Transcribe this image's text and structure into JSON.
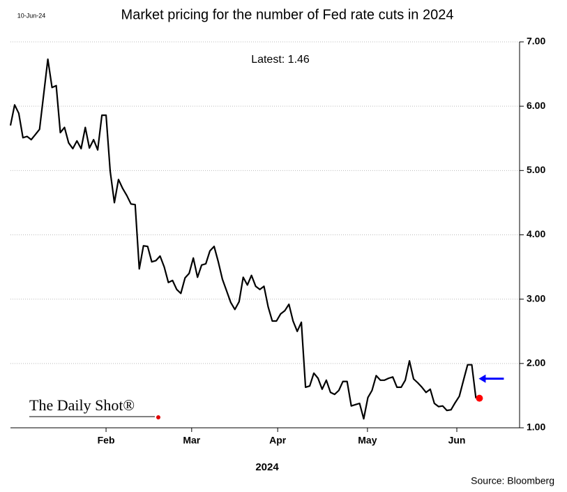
{
  "chart_data": {
    "type": "line",
    "date": "10-Jun-24",
    "title": "Market pricing for the number of Fed rate cuts in 2024",
    "annotation": "Latest:  1.46",
    "xlabel": "2024",
    "source": "Source: Bloomberg",
    "logo": "The Daily Shot®",
    "color": "#000000",
    "last_point_color": "#ff0000",
    "arrow_color": "#0000ff",
    "grid": true,
    "values": [
      5.7,
      6.02,
      5.89,
      5.51,
      5.53,
      5.48,
      5.56,
      5.64,
      6.19,
      6.73,
      6.29,
      6.32,
      5.59,
      5.67,
      5.43,
      5.34,
      5.46,
      5.34,
      5.67,
      5.35,
      5.48,
      5.32,
      5.86,
      5.86,
      4.99,
      4.5,
      4.86,
      4.72,
      4.61,
      4.48,
      4.47,
      3.47,
      3.83,
      3.82,
      3.58,
      3.6,
      3.67,
      3.5,
      3.26,
      3.29,
      3.15,
      3.09,
      3.33,
      3.4,
      3.64,
      3.34,
      3.53,
      3.55,
      3.75,
      3.82,
      3.58,
      3.31,
      3.13,
      2.95,
      2.84,
      2.96,
      3.34,
      3.22,
      3.37,
      3.2,
      3.15,
      3.2,
      2.88,
      2.66,
      2.66,
      2.77,
      2.82,
      2.92,
      2.66,
      2.5,
      2.64,
      1.63,
      1.65,
      1.85,
      1.77,
      1.6,
      1.74,
      1.55,
      1.52,
      1.58,
      1.72,
      1.72,
      1.34,
      1.36,
      1.38,
      1.14,
      1.47,
      1.58,
      1.81,
      1.74,
      1.74,
      1.77,
      1.79,
      1.63,
      1.63,
      1.74,
      2.04,
      1.76,
      1.7,
      1.63,
      1.55,
      1.6,
      1.38,
      1.33,
      1.34,
      1.27,
      1.28,
      1.39,
      1.49,
      1.74,
      1.98,
      1.98,
      1.46
    ],
    "xlim": [
      0,
      122.5
    ],
    "xticks": [
      {
        "value": 23,
        "label": "Feb"
      },
      {
        "value": 43.6,
        "label": "Mar"
      },
      {
        "value": 64.3,
        "label": "Apr"
      },
      {
        "value": 85.9,
        "label": "May"
      },
      {
        "value": 107.4,
        "label": "Jun"
      }
    ],
    "ylim": [
      1,
      7
    ],
    "yticks": [
      {
        "value": 1,
        "label": "1.00"
      },
      {
        "value": 2,
        "label": "2.00"
      },
      {
        "value": 3,
        "label": "3.00"
      },
      {
        "value": 4,
        "label": "4.00"
      },
      {
        "value": 5,
        "label": "5.00"
      },
      {
        "value": 6,
        "label": "6.00"
      },
      {
        "value": 7,
        "label": "7.00"
      }
    ]
  }
}
